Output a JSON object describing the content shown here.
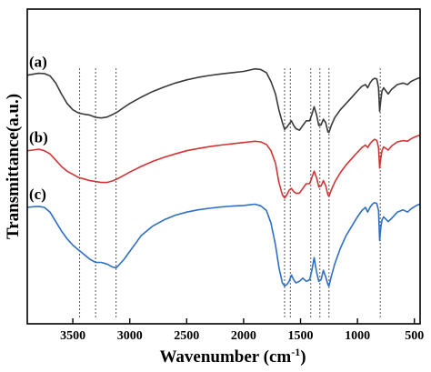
{
  "chart_data": {
    "type": "line",
    "xlabel": "Wavenumber (cm",
    "xlabel_sup": "-1",
    "xlabel_end": ")",
    "ylabel": "Transmittance(a.u.)",
    "xlim": [
      3900,
      450
    ],
    "x_reversed": true,
    "x_ticks": [
      3500,
      3000,
      2500,
      2000,
      1500,
      1000,
      500
    ],
    "y_ticks_shown": false,
    "reference_lines_x": [
      3440,
      3300,
      3120,
      1640,
      1590,
      1410,
      1330,
      1250,
      800
    ],
    "series": [
      {
        "name": "(a)",
        "color": "#3a3a3a",
        "points": [
          [
            3900,
            79
          ],
          [
            3850,
            79.3
          ],
          [
            3800,
            79.6
          ],
          [
            3750,
            79.5
          ],
          [
            3700,
            78.8
          ],
          [
            3650,
            76.5
          ],
          [
            3600,
            73
          ],
          [
            3550,
            70
          ],
          [
            3500,
            68
          ],
          [
            3450,
            67
          ],
          [
            3400,
            66.6
          ],
          [
            3350,
            66.3
          ],
          [
            3300,
            65.6
          ],
          [
            3250,
            65.4
          ],
          [
            3200,
            65.7
          ],
          [
            3150,
            66.5
          ],
          [
            3100,
            67.5
          ],
          [
            3050,
            68.8
          ],
          [
            3000,
            70
          ],
          [
            2950,
            71
          ],
          [
            2900,
            72
          ],
          [
            2800,
            73.8
          ],
          [
            2700,
            75.2
          ],
          [
            2600,
            76.5
          ],
          [
            2500,
            77.5
          ],
          [
            2400,
            78.3
          ],
          [
            2300,
            78.9
          ],
          [
            2200,
            79.4
          ],
          [
            2100,
            79.8
          ],
          [
            2000,
            80.2
          ],
          [
            1950,
            80.6
          ],
          [
            1900,
            81
          ],
          [
            1850,
            80.8
          ],
          [
            1800,
            79.8
          ],
          [
            1760,
            77
          ],
          [
            1720,
            73
          ],
          [
            1690,
            68
          ],
          [
            1660,
            64
          ],
          [
            1640,
            61.8
          ],
          [
            1620,
            62.5
          ],
          [
            1600,
            63.5
          ],
          [
            1580,
            64.5
          ],
          [
            1560,
            63
          ],
          [
            1540,
            62
          ],
          [
            1510,
            61.5
          ],
          [
            1480,
            63
          ],
          [
            1450,
            64.5
          ],
          [
            1420,
            64.5
          ],
          [
            1400,
            66.5
          ],
          [
            1380,
            69
          ],
          [
            1360,
            66.5
          ],
          [
            1340,
            63
          ],
          [
            1320,
            63.2
          ],
          [
            1300,
            65
          ],
          [
            1280,
            64
          ],
          [
            1260,
            61
          ],
          [
            1250,
            60.8
          ],
          [
            1230,
            63
          ],
          [
            1200,
            65.5
          ],
          [
            1150,
            68
          ],
          [
            1100,
            70
          ],
          [
            1050,
            72
          ],
          [
            1000,
            74
          ],
          [
            960,
            75.5
          ],
          [
            930,
            76
          ],
          [
            910,
            75
          ],
          [
            890,
            76.5
          ],
          [
            870,
            77.5
          ],
          [
            850,
            78
          ],
          [
            830,
            77.8
          ],
          [
            815,
            75
          ],
          [
            805,
            67.5
          ],
          [
            795,
            71
          ],
          [
            785,
            74
          ],
          [
            770,
            75
          ],
          [
            730,
            73
          ],
          [
            700,
            74.5
          ],
          [
            650,
            76
          ],
          [
            600,
            76.5
          ],
          [
            560,
            76
          ],
          [
            530,
            77
          ],
          [
            500,
            77.5
          ],
          [
            470,
            78
          ],
          [
            450,
            78.2
          ]
        ]
      },
      {
        "name": "(b)",
        "color": "#d03535",
        "points": [
          [
            3900,
            55
          ],
          [
            3850,
            55.2
          ],
          [
            3800,
            55.5
          ],
          [
            3750,
            55
          ],
          [
            3700,
            54
          ],
          [
            3650,
            52
          ],
          [
            3600,
            50
          ],
          [
            3550,
            48.5
          ],
          [
            3500,
            47.5
          ],
          [
            3450,
            46.5
          ],
          [
            3400,
            46
          ],
          [
            3350,
            45.5
          ],
          [
            3300,
            45.2
          ],
          [
            3250,
            44.9
          ],
          [
            3200,
            44.9
          ],
          [
            3150,
            45.4
          ],
          [
            3100,
            46.2
          ],
          [
            3050,
            47.2
          ],
          [
            3000,
            48.2
          ],
          [
            2900,
            50
          ],
          [
            2800,
            51.6
          ],
          [
            2700,
            52.9
          ],
          [
            2600,
            54
          ],
          [
            2500,
            55
          ],
          [
            2400,
            55.7
          ],
          [
            2300,
            56.3
          ],
          [
            2200,
            56.8
          ],
          [
            2100,
            57.2
          ],
          [
            2000,
            57.6
          ],
          [
            1950,
            57.8
          ],
          [
            1900,
            58
          ],
          [
            1850,
            57.8
          ],
          [
            1800,
            57
          ],
          [
            1760,
            55
          ],
          [
            1720,
            51
          ],
          [
            1690,
            45
          ],
          [
            1660,
            41
          ],
          [
            1640,
            40
          ],
          [
            1620,
            41
          ],
          [
            1600,
            42.5
          ],
          [
            1580,
            43
          ],
          [
            1560,
            42
          ],
          [
            1540,
            41.5
          ],
          [
            1510,
            41.5
          ],
          [
            1480,
            43
          ],
          [
            1450,
            44.5
          ],
          [
            1420,
            44.5
          ],
          [
            1400,
            46.5
          ],
          [
            1380,
            48.5
          ],
          [
            1360,
            46.5
          ],
          [
            1340,
            43.5
          ],
          [
            1320,
            43.8
          ],
          [
            1300,
            45.5
          ],
          [
            1280,
            44
          ],
          [
            1260,
            41
          ],
          [
            1250,
            40.5
          ],
          [
            1230,
            42.5
          ],
          [
            1200,
            45
          ],
          [
            1150,
            48
          ],
          [
            1100,
            50.5
          ],
          [
            1050,
            52.5
          ],
          [
            1000,
            54.5
          ],
          [
            960,
            56
          ],
          [
            930,
            56.8
          ],
          [
            910,
            56
          ],
          [
            890,
            57.2
          ],
          [
            870,
            58
          ],
          [
            850,
            58.6
          ],
          [
            830,
            58.3
          ],
          [
            815,
            56
          ],
          [
            805,
            49.5
          ],
          [
            795,
            52.5
          ],
          [
            785,
            55
          ],
          [
            770,
            56.2
          ],
          [
            730,
            55.2
          ],
          [
            700,
            56.5
          ],
          [
            650,
            57.8
          ],
          [
            600,
            58.2
          ],
          [
            560,
            58
          ],
          [
            530,
            58.8
          ],
          [
            500,
            59.3
          ],
          [
            470,
            59.7
          ],
          [
            450,
            60
          ]
        ]
      },
      {
        "name": "(c)",
        "color": "#2f6fc4",
        "points": [
          [
            3900,
            37
          ],
          [
            3850,
            37.2
          ],
          [
            3800,
            37.3
          ],
          [
            3750,
            37
          ],
          [
            3700,
            35.5
          ],
          [
            3650,
            32.5
          ],
          [
            3600,
            29.5
          ],
          [
            3550,
            27
          ],
          [
            3500,
            25
          ],
          [
            3450,
            23.5
          ],
          [
            3400,
            22
          ],
          [
            3350,
            20.5
          ],
          [
            3300,
            19.5
          ],
          [
            3250,
            19.5
          ],
          [
            3200,
            19
          ],
          [
            3150,
            18
          ],
          [
            3120,
            17.8
          ],
          [
            3100,
            18.5
          ],
          [
            3050,
            20.5
          ],
          [
            3000,
            23
          ],
          [
            2950,
            25.5
          ],
          [
            2900,
            28
          ],
          [
            2800,
            31
          ],
          [
            2700,
            33
          ],
          [
            2600,
            34.5
          ],
          [
            2500,
            35.5
          ],
          [
            2400,
            36.2
          ],
          [
            2300,
            36.7
          ],
          [
            2200,
            37.1
          ],
          [
            2100,
            37.4
          ],
          [
            2000,
            37.6
          ],
          [
            1950,
            37.8
          ],
          [
            1900,
            38
          ],
          [
            1850,
            37.5
          ],
          [
            1800,
            36
          ],
          [
            1760,
            32
          ],
          [
            1720,
            25
          ],
          [
            1690,
            18
          ],
          [
            1660,
            13
          ],
          [
            1640,
            12
          ],
          [
            1620,
            12.5
          ],
          [
            1600,
            13.5
          ],
          [
            1580,
            15.5
          ],
          [
            1560,
            14
          ],
          [
            1540,
            13
          ],
          [
            1510,
            13.5
          ],
          [
            1480,
            14.5
          ],
          [
            1450,
            13.5
          ],
          [
            1420,
            14
          ],
          [
            1400,
            17
          ],
          [
            1380,
            21
          ],
          [
            1360,
            16.5
          ],
          [
            1340,
            13.5
          ],
          [
            1320,
            14
          ],
          [
            1300,
            17
          ],
          [
            1280,
            15
          ],
          [
            1260,
            12.5
          ],
          [
            1250,
            12
          ],
          [
            1230,
            15
          ],
          [
            1200,
            19
          ],
          [
            1150,
            24
          ],
          [
            1100,
            28
          ],
          [
            1050,
            31
          ],
          [
            1000,
            34
          ],
          [
            960,
            36
          ],
          [
            930,
            37
          ],
          [
            910,
            35.5
          ],
          [
            890,
            37
          ],
          [
            870,
            38
          ],
          [
            850,
            38.5
          ],
          [
            830,
            38.2
          ],
          [
            815,
            36
          ],
          [
            805,
            26.5
          ],
          [
            795,
            30.5
          ],
          [
            785,
            33
          ],
          [
            770,
            34
          ],
          [
            730,
            32.5
          ],
          [
            700,
            33.5
          ],
          [
            650,
            35.5
          ],
          [
            600,
            36.2
          ],
          [
            560,
            35.5
          ],
          [
            530,
            36.5
          ],
          [
            500,
            37.2
          ],
          [
            470,
            37.8
          ],
          [
            450,
            38
          ]
        ]
      }
    ]
  }
}
